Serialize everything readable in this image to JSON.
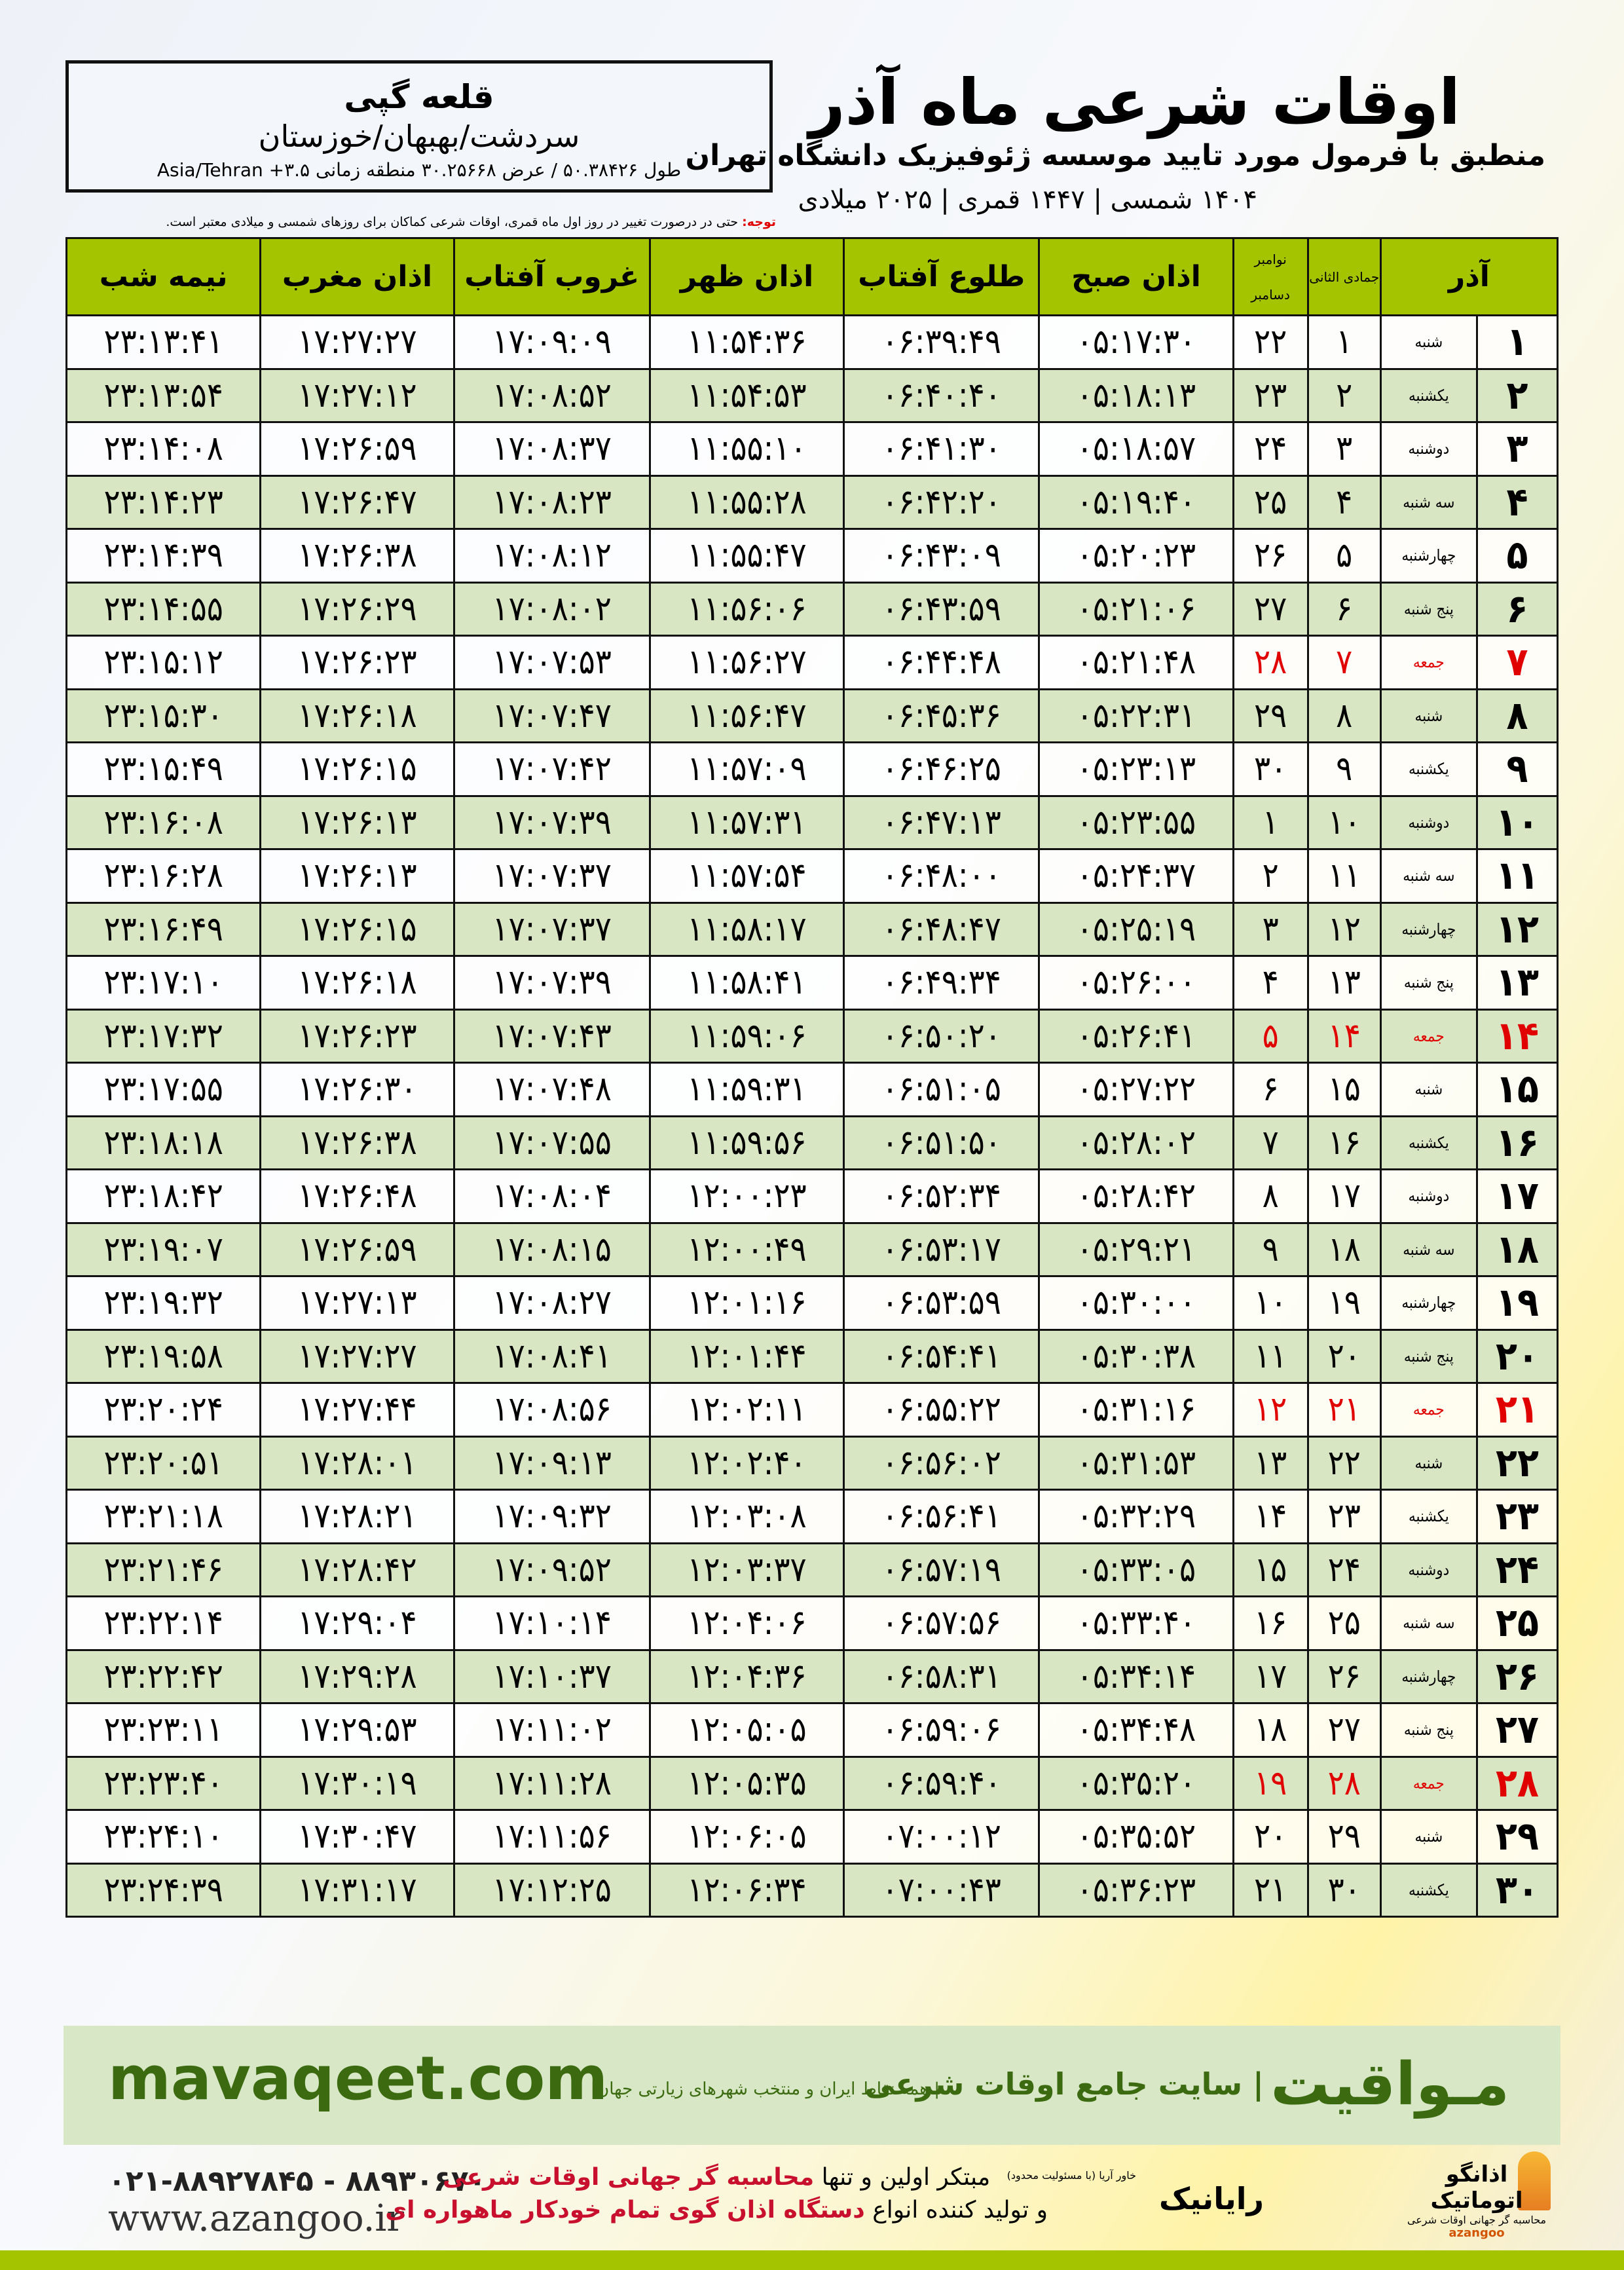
{
  "header": {
    "title": "اوقات شرعی ماه آذر",
    "subtitle": "منطبق با فرمول مورد تایید موسسه ژئوفیزیک دانشگاه تهران",
    "years": "۱۴۰۴ شمسی | ۱۴۴۷ قمری | ۲۰۲۵ میلادی"
  },
  "location": {
    "city": "قلعه گپی",
    "region": "سردشت/بهبهان/خوزستان",
    "coords": "طول ۵۰.۳۸۴۲۶ / عرض ۳۰.۲۵۶۶۸ منطقه زمانی ۳.۵+ Asia/Tehran"
  },
  "note": {
    "label": "توجه:",
    "text": " حتی در درصورت تغییر در روز اول ماه قمری، اوقات شرعی کماکان برای روزهای شمسی و میلادی معتبر است."
  },
  "colors": {
    "header_green": "#a4c400",
    "row_alt": "#d8e6c4",
    "friday_red": "#e00000",
    "brand_green": "#3c6a10"
  },
  "table": {
    "headers": {
      "month": "آذر",
      "hijri": "جمادی الثانی",
      "gregorian_top": "نوامبر",
      "gregorian_bottom": "دسامبر",
      "fajr": "اذان صبح",
      "sunrise": "طلوع آفتاب",
      "dhuhr": "اذان ظهر",
      "sunset": "غروب آفتاب",
      "maghrib": "اذان مغرب",
      "midnight": "نیمه شب"
    },
    "rows": [
      [
        "۱",
        "شنبه",
        "۱",
        "۲۲",
        "۰۵:۱۷:۳۰",
        "۰۶:۳۹:۴۹",
        "۱۱:۵۴:۳۶",
        "۱۷:۰۹:۰۹",
        "۱۷:۲۷:۲۷",
        "۲۳:۱۳:۴۱"
      ],
      [
        "۲",
        "یکشنبه",
        "۲",
        "۲۳",
        "۰۵:۱۸:۱۳",
        "۰۶:۴۰:۴۰",
        "۱۱:۵۴:۵۳",
        "۱۷:۰۸:۵۲",
        "۱۷:۲۷:۱۲",
        "۲۳:۱۳:۵۴"
      ],
      [
        "۳",
        "دوشنبه",
        "۳",
        "۲۴",
        "۰۵:۱۸:۵۷",
        "۰۶:۴۱:۳۰",
        "۱۱:۵۵:۱۰",
        "۱۷:۰۸:۳۷",
        "۱۷:۲۶:۵۹",
        "۲۳:۱۴:۰۸"
      ],
      [
        "۴",
        "سه شنبه",
        "۴",
        "۲۵",
        "۰۵:۱۹:۴۰",
        "۰۶:۴۲:۲۰",
        "۱۱:۵۵:۲۸",
        "۱۷:۰۸:۲۳",
        "۱۷:۲۶:۴۷",
        "۲۳:۱۴:۲۳"
      ],
      [
        "۵",
        "چهارشنبه",
        "۵",
        "۲۶",
        "۰۵:۲۰:۲۳",
        "۰۶:۴۳:۰۹",
        "۱۱:۵۵:۴۷",
        "۱۷:۰۸:۱۲",
        "۱۷:۲۶:۳۸",
        "۲۳:۱۴:۳۹"
      ],
      [
        "۶",
        "پنج شنبه",
        "۶",
        "۲۷",
        "۰۵:۲۱:۰۶",
        "۰۶:۴۳:۵۹",
        "۱۱:۵۶:۰۶",
        "۱۷:۰۸:۰۲",
        "۱۷:۲۶:۲۹",
        "۲۳:۱۴:۵۵"
      ],
      [
        "۷",
        "جمعه",
        "۷",
        "۲۸",
        "۰۵:۲۱:۴۸",
        "۰۶:۴۴:۴۸",
        "۱۱:۵۶:۲۷",
        "۱۷:۰۷:۵۳",
        "۱۷:۲۶:۲۳",
        "۲۳:۱۵:۱۲"
      ],
      [
        "۸",
        "شنبه",
        "۸",
        "۲۹",
        "۰۵:۲۲:۳۱",
        "۰۶:۴۵:۳۶",
        "۱۱:۵۶:۴۷",
        "۱۷:۰۷:۴۷",
        "۱۷:۲۶:۱۸",
        "۲۳:۱۵:۳۰"
      ],
      [
        "۹",
        "یکشنبه",
        "۹",
        "۳۰",
        "۰۵:۲۳:۱۳",
        "۰۶:۴۶:۲۵",
        "۱۱:۵۷:۰۹",
        "۱۷:۰۷:۴۲",
        "۱۷:۲۶:۱۵",
        "۲۳:۱۵:۴۹"
      ],
      [
        "۱۰",
        "دوشنبه",
        "۱۰",
        "۱",
        "۰۵:۲۳:۵۵",
        "۰۶:۴۷:۱۳",
        "۱۱:۵۷:۳۱",
        "۱۷:۰۷:۳۹",
        "۱۷:۲۶:۱۳",
        "۲۳:۱۶:۰۸"
      ],
      [
        "۱۱",
        "سه شنبه",
        "۱۱",
        "۲",
        "۰۵:۲۴:۳۷",
        "۰۶:۴۸:۰۰",
        "۱۱:۵۷:۵۴",
        "۱۷:۰۷:۳۷",
        "۱۷:۲۶:۱۳",
        "۲۳:۱۶:۲۸"
      ],
      [
        "۱۲",
        "چهارشنبه",
        "۱۲",
        "۳",
        "۰۵:۲۵:۱۹",
        "۰۶:۴۸:۴۷",
        "۱۱:۵۸:۱۷",
        "۱۷:۰۷:۳۷",
        "۱۷:۲۶:۱۵",
        "۲۳:۱۶:۴۹"
      ],
      [
        "۱۳",
        "پنج شنبه",
        "۱۳",
        "۴",
        "۰۵:۲۶:۰۰",
        "۰۶:۴۹:۳۴",
        "۱۱:۵۸:۴۱",
        "۱۷:۰۷:۳۹",
        "۱۷:۲۶:۱۸",
        "۲۳:۱۷:۱۰"
      ],
      [
        "۱۴",
        "جمعه",
        "۱۴",
        "۵",
        "۰۵:۲۶:۴۱",
        "۰۶:۵۰:۲۰",
        "۱۱:۵۹:۰۶",
        "۱۷:۰۷:۴۳",
        "۱۷:۲۶:۲۳",
        "۲۳:۱۷:۳۲"
      ],
      [
        "۱۵",
        "شنبه",
        "۱۵",
        "۶",
        "۰۵:۲۷:۲۲",
        "۰۶:۵۱:۰۵",
        "۱۱:۵۹:۳۱",
        "۱۷:۰۷:۴۸",
        "۱۷:۲۶:۳۰",
        "۲۳:۱۷:۵۵"
      ],
      [
        "۱۶",
        "یکشنبه",
        "۱۶",
        "۷",
        "۰۵:۲۸:۰۲",
        "۰۶:۵۱:۵۰",
        "۱۱:۵۹:۵۶",
        "۱۷:۰۷:۵۵",
        "۱۷:۲۶:۳۸",
        "۲۳:۱۸:۱۸"
      ],
      [
        "۱۷",
        "دوشنبه",
        "۱۷",
        "۸",
        "۰۵:۲۸:۴۲",
        "۰۶:۵۲:۳۴",
        "۱۲:۰۰:۲۳",
        "۱۷:۰۸:۰۴",
        "۱۷:۲۶:۴۸",
        "۲۳:۱۸:۴۲"
      ],
      [
        "۱۸",
        "سه شنبه",
        "۱۸",
        "۹",
        "۰۵:۲۹:۲۱",
        "۰۶:۵۳:۱۷",
        "۱۲:۰۰:۴۹",
        "۱۷:۰۸:۱۵",
        "۱۷:۲۶:۵۹",
        "۲۳:۱۹:۰۷"
      ],
      [
        "۱۹",
        "چهارشنبه",
        "۱۹",
        "۱۰",
        "۰۵:۳۰:۰۰",
        "۰۶:۵۳:۵۹",
        "۱۲:۰۱:۱۶",
        "۱۷:۰۸:۲۷",
        "۱۷:۲۷:۱۳",
        "۲۳:۱۹:۳۲"
      ],
      [
        "۲۰",
        "پنج شنبه",
        "۲۰",
        "۱۱",
        "۰۵:۳۰:۳۸",
        "۰۶:۵۴:۴۱",
        "۱۲:۰۱:۴۴",
        "۱۷:۰۸:۴۱",
        "۱۷:۲۷:۲۷",
        "۲۳:۱۹:۵۸"
      ],
      [
        "۲۱",
        "جمعه",
        "۲۱",
        "۱۲",
        "۰۵:۳۱:۱۶",
        "۰۶:۵۵:۲۲",
        "۱۲:۰۲:۱۱",
        "۱۷:۰۸:۵۶",
        "۱۷:۲۷:۴۴",
        "۲۳:۲۰:۲۴"
      ],
      [
        "۲۲",
        "شنبه",
        "۲۲",
        "۱۳",
        "۰۵:۳۱:۵۳",
        "۰۶:۵۶:۰۲",
        "۱۲:۰۲:۴۰",
        "۱۷:۰۹:۱۳",
        "۱۷:۲۸:۰۱",
        "۲۳:۲۰:۵۱"
      ],
      [
        "۲۳",
        "یکشنبه",
        "۲۳",
        "۱۴",
        "۰۵:۳۲:۲۹",
        "۰۶:۵۶:۴۱",
        "۱۲:۰۳:۰۸",
        "۱۷:۰۹:۳۲",
        "۱۷:۲۸:۲۱",
        "۲۳:۲۱:۱۸"
      ],
      [
        "۲۴",
        "دوشنبه",
        "۲۴",
        "۱۵",
        "۰۵:۳۳:۰۵",
        "۰۶:۵۷:۱۹",
        "۱۲:۰۳:۳۷",
        "۱۷:۰۹:۵۲",
        "۱۷:۲۸:۴۲",
        "۲۳:۲۱:۴۶"
      ],
      [
        "۲۵",
        "سه شنبه",
        "۲۵",
        "۱۶",
        "۰۵:۳۳:۴۰",
        "۰۶:۵۷:۵۶",
        "۱۲:۰۴:۰۶",
        "۱۷:۱۰:۱۴",
        "۱۷:۲۹:۰۴",
        "۲۳:۲۲:۱۴"
      ],
      [
        "۲۶",
        "چهارشنبه",
        "۲۶",
        "۱۷",
        "۰۵:۳۴:۱۴",
        "۰۶:۵۸:۳۱",
        "۱۲:۰۴:۳۶",
        "۱۷:۱۰:۳۷",
        "۱۷:۲۹:۲۸",
        "۲۳:۲۲:۴۲"
      ],
      [
        "۲۷",
        "پنج شنبه",
        "۲۷",
        "۱۸",
        "۰۵:۳۴:۴۸",
        "۰۶:۵۹:۰۶",
        "۱۲:۰۵:۰۵",
        "۱۷:۱۱:۰۲",
        "۱۷:۲۹:۵۳",
        "۲۳:۲۳:۱۱"
      ],
      [
        "۲۸",
        "جمعه",
        "۲۸",
        "۱۹",
        "۰۵:۳۵:۲۰",
        "۰۶:۵۹:۴۰",
        "۱۲:۰۵:۳۵",
        "۱۷:۱۱:۲۸",
        "۱۷:۳۰:۱۹",
        "۲۳:۲۳:۴۰"
      ],
      [
        "۲۹",
        "شنبه",
        "۲۹",
        "۲۰",
        "۰۵:۳۵:۵۲",
        "۰۷:۰۰:۱۲",
        "۱۲:۰۶:۰۵",
        "۱۷:۱۱:۵۶",
        "۱۷:۳۰:۴۷",
        "۲۳:۲۴:۱۰"
      ],
      [
        "۳۰",
        "یکشنبه",
        "۳۰",
        "۲۱",
        "۰۵:۳۶:۲۳",
        "۰۷:۰۰:۴۳",
        "۱۲:۰۶:۳۴",
        "۱۷:۱۲:۲۵",
        "۱۷:۳۱:۱۷",
        "۲۳:۲۴:۳۹"
      ]
    ]
  },
  "footer": {
    "brand": "مـواقیت",
    "slogan": "| سایت جامع اوقات شرعی",
    "tagline": "| همه نقاط ایران و منتخب شهرهای زیارتی جهان",
    "site": "mavaqeet.com",
    "phone": "۰۲۱-۸۸۹۲۷۸۴۵ - ۸۸۹۳۰۶۷۰",
    "web": "www.azangoo.ir",
    "promo_line1_a": "مبتکر اولین و تنها ",
    "promo_line1_b": "محاسبه گر جهانی اوقات شرعی",
    "promo_line2_a": "و تولید کننده انواع ",
    "promo_line2_b": "دستگاه اذان گوی تمام خودکار ماهواره ای",
    "rayanik": "رایانیک",
    "rayanik_sub": "خاور آریا (با مسئولیت محدود)",
    "azangoo_name": "اذانگو اتوماتیک",
    "azangoo_sub": "محاسبه گر جهانی اوقات شرعی",
    "azangoo_en": "azangoo"
  }
}
